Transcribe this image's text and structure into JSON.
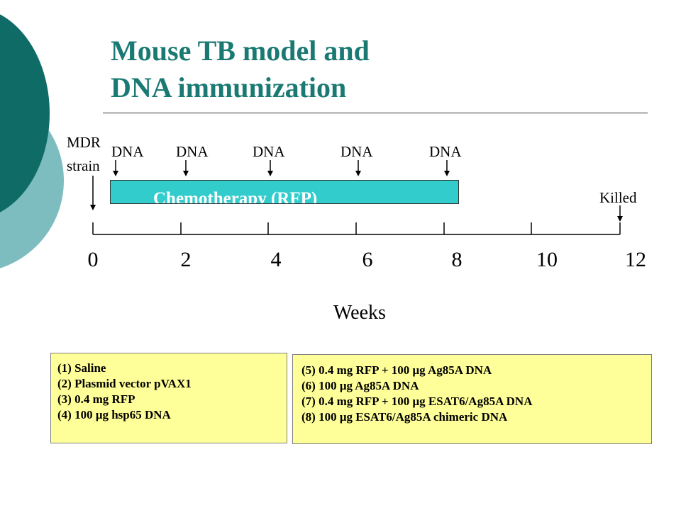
{
  "title": {
    "line1": "Mouse TB model and",
    "line2": "DNA immunization"
  },
  "timeline": {
    "start_label_line1": "MDR",
    "start_label_line2": "strain",
    "dna_label": "DNA",
    "dna_weeks": [
      0.5,
      2,
      4,
      6,
      8
    ],
    "end_label": "Killed",
    "end_week": 12,
    "ticks": [
      0,
      2,
      4,
      6,
      8,
      10,
      12
    ],
    "axis_label": "Weeks",
    "chemotherapy": {
      "label": "Chemotherapy (RFP)",
      "start_week": 0.4,
      "end_week": 8.4,
      "color": "#33cccc"
    }
  },
  "groups_left": [
    "(1) Saline",
    "(2) Plasmid vector pVAX1",
    "(3) 0.4 mg RFP",
    "(4) 100 μg hsp65 DNA"
  ],
  "groups_right": [
    "(5) 0.4 mg RFP + 100 μg Ag85A DNA",
    "(6) 100 μg Ag85A DNA",
    "(7) 0.4 mg RFP + 100 μg ESAT6/Ag85A DNA",
    "(8) 100 μg ESAT6/Ag85A chimeric DNA"
  ],
  "colors": {
    "title": "#1a7a73",
    "decor_dark": "#0f6b66",
    "decor_light": "#7dbdbf",
    "box_fill": "#ffff99"
  }
}
